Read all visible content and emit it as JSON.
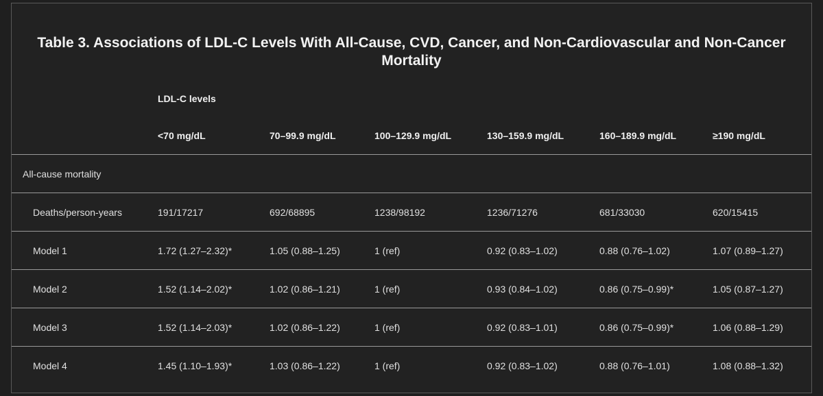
{
  "title": "Table 3. Associations of LDL-C Levels With All-Cause, CVD, Cancer, and Non-Cardiovascular and Non-Cancer Mortality",
  "table": {
    "group_header": "LDL-C levels",
    "columns": [
      "<70 mg/dL",
      "70–99.9 mg/dL",
      "100–129.9 mg/dL",
      "130–159.9 mg/dL",
      "160–189.9 mg/dL",
      "≥190 mg/dL"
    ],
    "section_label": "All-cause mortality",
    "rows": [
      {
        "label": "Deaths/person-years",
        "cells": [
          "191/17217",
          "692/68895",
          "1238/98192",
          "1236/71276",
          "681/33030",
          "620/15415"
        ]
      },
      {
        "label": "Model 1",
        "cells": [
          "1.72 (1.27–2.32)*",
          "1.05 (0.88–1.25)",
          "1 (ref)",
          "0.92 (0.83–1.02)",
          "0.88 (0.76–1.02)",
          "1.07 (0.89–1.27)"
        ]
      },
      {
        "label": "Model 2",
        "cells": [
          "1.52 (1.14–2.02)*",
          "1.02 (0.86–1.21)",
          "1 (ref)",
          "0.93 (0.84–1.02)",
          "0.86 (0.75–0.99)*",
          "1.05 (0.87–1.27)"
        ]
      },
      {
        "label": "Model 3",
        "cells": [
          "1.52 (1.14–2.03)*",
          "1.02 (0.86–1.22)",
          "1 (ref)",
          "0.92 (0.83–1.01)",
          "0.86 (0.75–0.99)*",
          "1.06 (0.88–1.29)"
        ]
      },
      {
        "label": "Model 4",
        "cells": [
          "1.45 (1.10–1.93)*",
          "1.03 (0.86–1.22)",
          "1 (ref)",
          "0.92 (0.83–1.02)",
          "0.88 (0.76–1.01)",
          "1.08 (0.88–1.32)"
        ]
      }
    ]
  }
}
